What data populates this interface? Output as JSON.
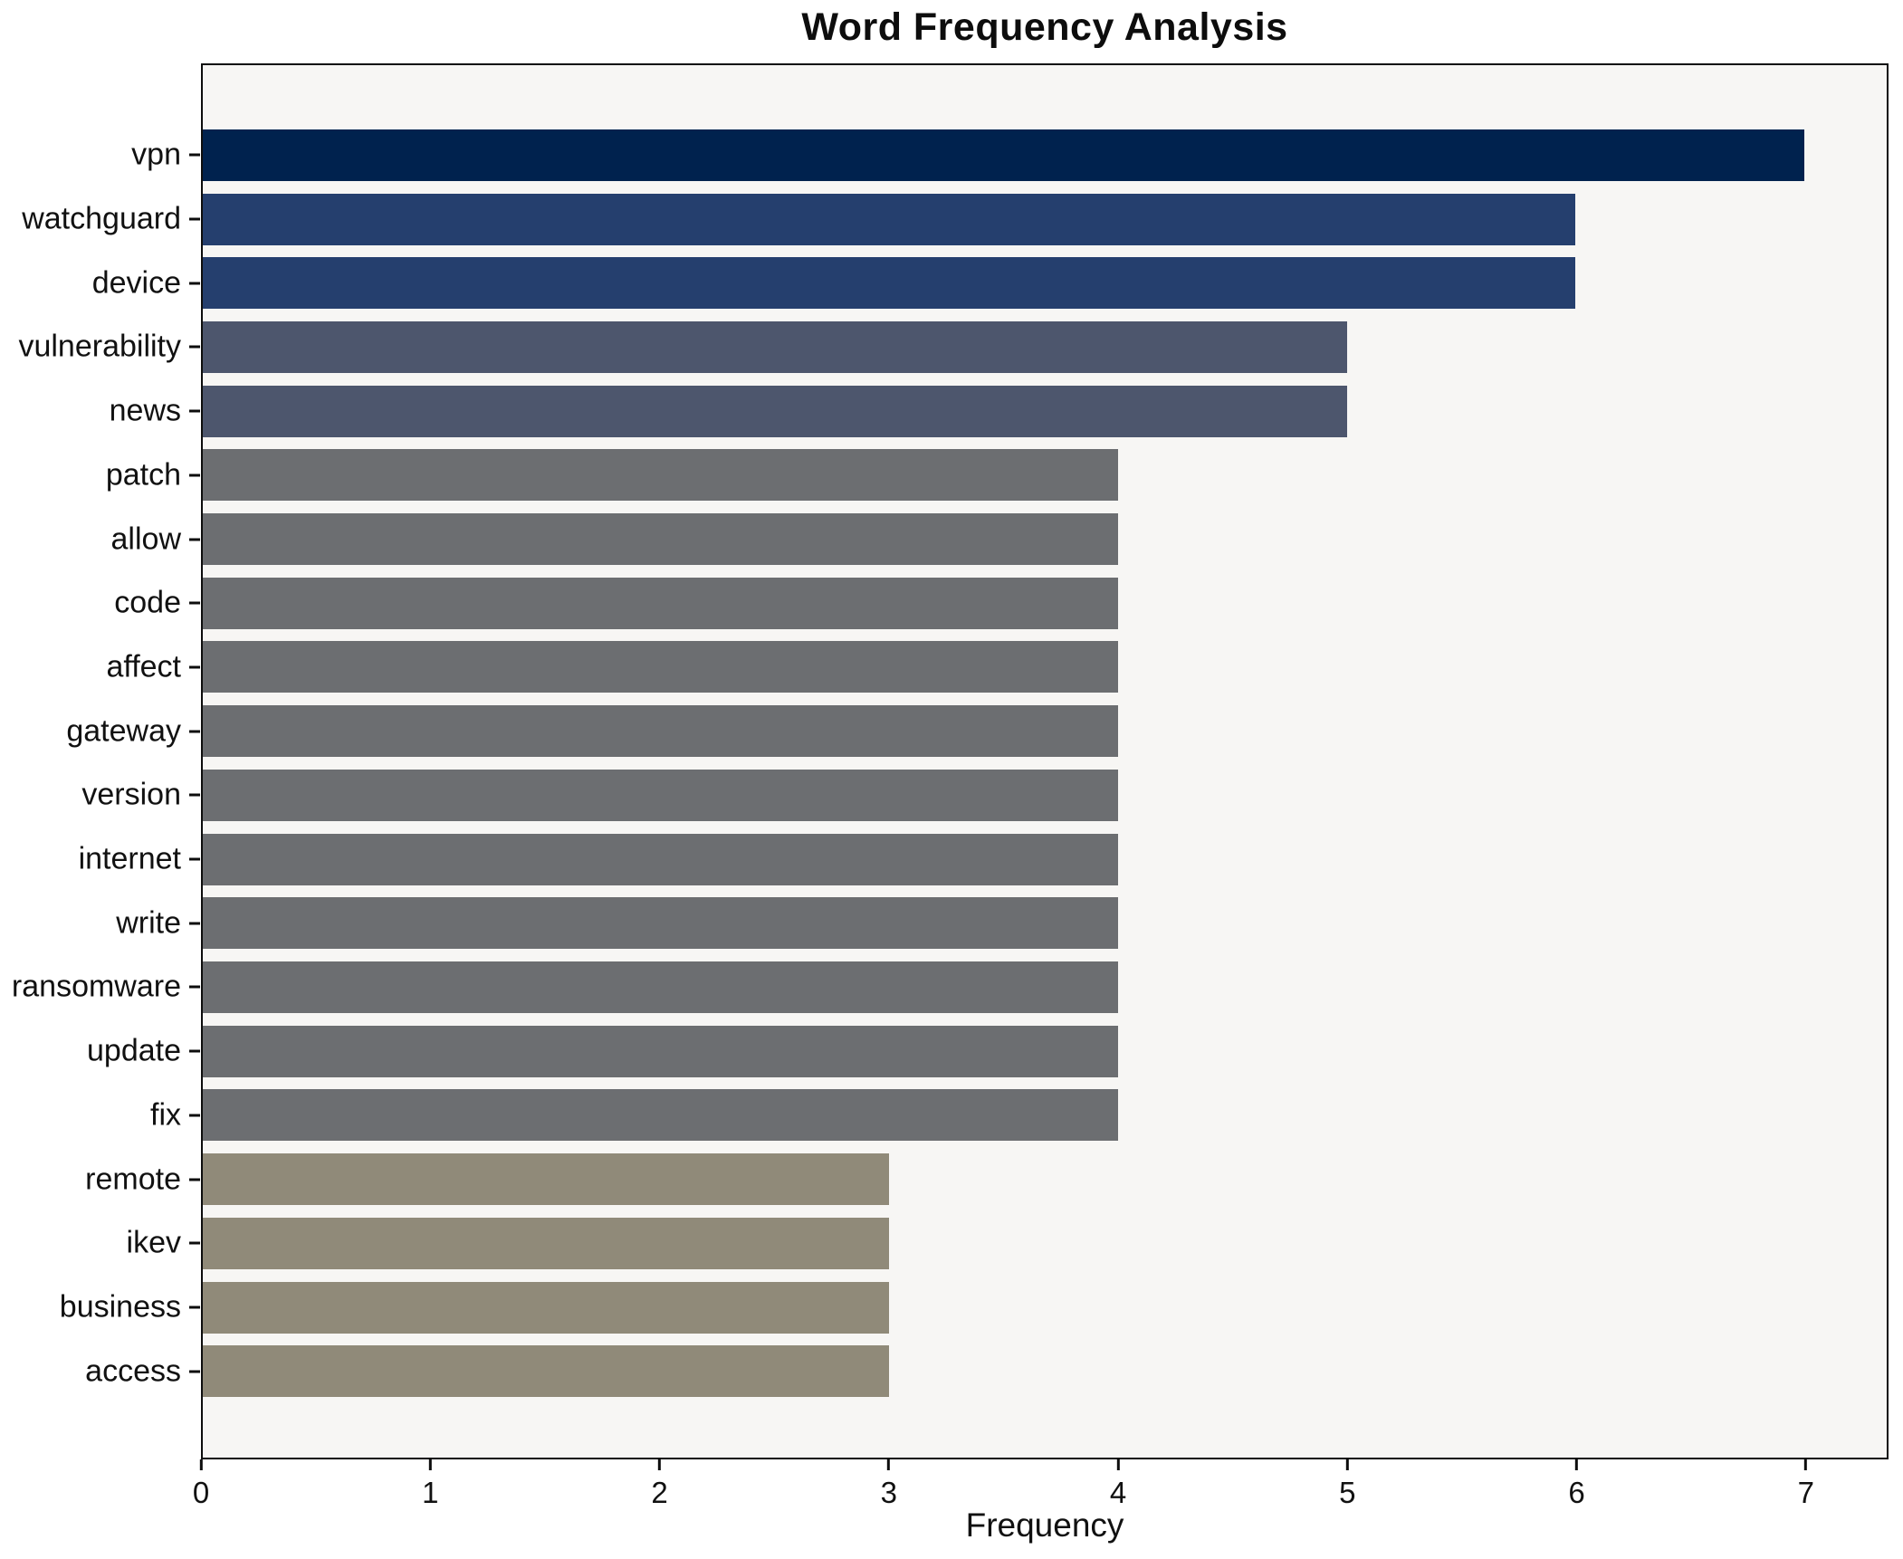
{
  "title": "Word Frequency Analysis",
  "chart_data": {
    "type": "bar",
    "orientation": "horizontal",
    "title": "Word Frequency Analysis",
    "xlabel": "Frequency",
    "ylabel": "",
    "grid": false,
    "legend": "none",
    "xlim": [
      0,
      7.36
    ],
    "xticks": [
      0,
      1,
      2,
      3,
      4,
      5,
      6,
      7
    ],
    "plot_background": "#f7f6f4",
    "figure_background": "#ffffff",
    "spine_color": "#0d0d0d",
    "categories": [
      "vpn",
      "watchguard",
      "device",
      "vulnerability",
      "news",
      "patch",
      "allow",
      "code",
      "affect",
      "gateway",
      "version",
      "internet",
      "write",
      "ransomware",
      "update",
      "fix",
      "remote",
      "ikev",
      "business",
      "access"
    ],
    "values": [
      7,
      6,
      6,
      5,
      5,
      4,
      4,
      4,
      4,
      4,
      4,
      4,
      4,
      4,
      4,
      4,
      3,
      3,
      3,
      3
    ],
    "bar_colors": [
      "#00224e",
      "#253f6e",
      "#253f6e",
      "#4d566d",
      "#4d566d",
      "#6c6e71",
      "#6c6e71",
      "#6c6e71",
      "#6c6e71",
      "#6c6e71",
      "#6c6e71",
      "#6c6e71",
      "#6c6e71",
      "#6c6e71",
      "#6c6e71",
      "#6c6e71",
      "#908a79",
      "#908a79",
      "#908a79",
      "#908a79"
    ]
  }
}
